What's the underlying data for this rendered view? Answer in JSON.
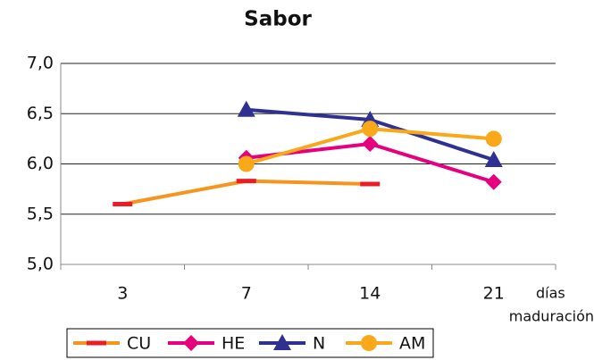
{
  "chart_data": {
    "type": "line",
    "title": "Sabor",
    "categories": [
      "3",
      "7",
      "14",
      "21"
    ],
    "x_label": [
      "días",
      "maduración"
    ],
    "series": [
      {
        "name": "CU",
        "color": "#f7941d",
        "marker_color": "#ed1c24",
        "marker": "dash",
        "values": [
          5.6,
          5.83,
          5.8,
          null
        ]
      },
      {
        "name": "HE",
        "color": "#e6007e",
        "marker_color": "#e6007e",
        "marker": "diamond",
        "values": [
          null,
          6.06,
          6.2,
          5.82
        ]
      },
      {
        "name": "N",
        "color": "#2e3192",
        "marker_color": "#2e3192",
        "marker": "triangle",
        "values": [
          null,
          6.54,
          6.44,
          6.04
        ]
      },
      {
        "name": "AM",
        "color": "#f9a81a",
        "marker_color": "#f9a81a",
        "marker": "circle",
        "values": [
          null,
          6.0,
          6.35,
          6.25
        ]
      }
    ],
    "ylim": [
      5,
      7
    ],
    "yticks": [
      {
        "value": 5,
        "label": "5,0"
      },
      {
        "value": 5.5,
        "label": "5,5"
      },
      {
        "value": 6,
        "label": "6,0"
      },
      {
        "value": 6.5,
        "label": "6,5"
      },
      {
        "value": 7,
        "label": "7,0"
      }
    ],
    "grid": true
  }
}
